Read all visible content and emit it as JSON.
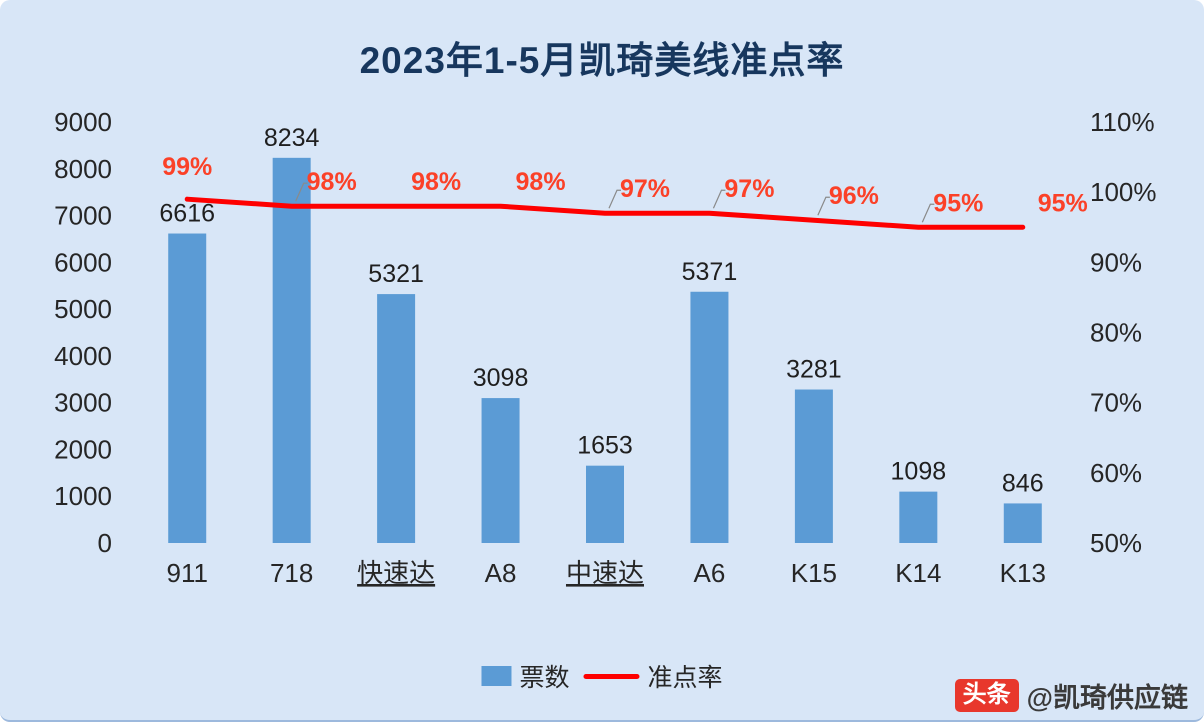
{
  "title": "2023年1-5月凯琦美线准点率",
  "legend": {
    "bars": "票数",
    "line": "准点率"
  },
  "watermark": {
    "badge": "头条",
    "text": "@凯琦供应链"
  },
  "colors": {
    "background": "#D8E6F7",
    "bar": "#5B9BD5",
    "line": "#FE0000",
    "pct_label": "#FB4128",
    "title": "#17375E",
    "watermark_badge": "#E8372C"
  },
  "underlined_categories": [
    "快速达",
    "中速达"
  ],
  "chart_data": {
    "type": "bar",
    "subtype": "combo-bar-line",
    "title": "2023年1-5月凯琦美线准点率",
    "categories": [
      "911",
      "718",
      "快速达",
      "A8",
      "中速达",
      "A6",
      "K15",
      "K14",
      "K13"
    ],
    "series": [
      {
        "name": "票数",
        "type": "bar",
        "values": [
          6616,
          8234,
          5321,
          3098,
          1653,
          5371,
          3281,
          1098,
          846
        ]
      },
      {
        "name": "准点率",
        "type": "line",
        "values": [
          99,
          98,
          98,
          98,
          97,
          97,
          96,
          95,
          95
        ],
        "unit": "%"
      }
    ],
    "left_axis": {
      "min": 0,
      "max": 9000,
      "step": 1000
    },
    "right_axis": {
      "min": 50,
      "max": 110,
      "step": 10,
      "unit": "%"
    },
    "grid": false,
    "legend_position": "bottom",
    "label_leader_indices": [
      1,
      4,
      5,
      6,
      7
    ]
  }
}
